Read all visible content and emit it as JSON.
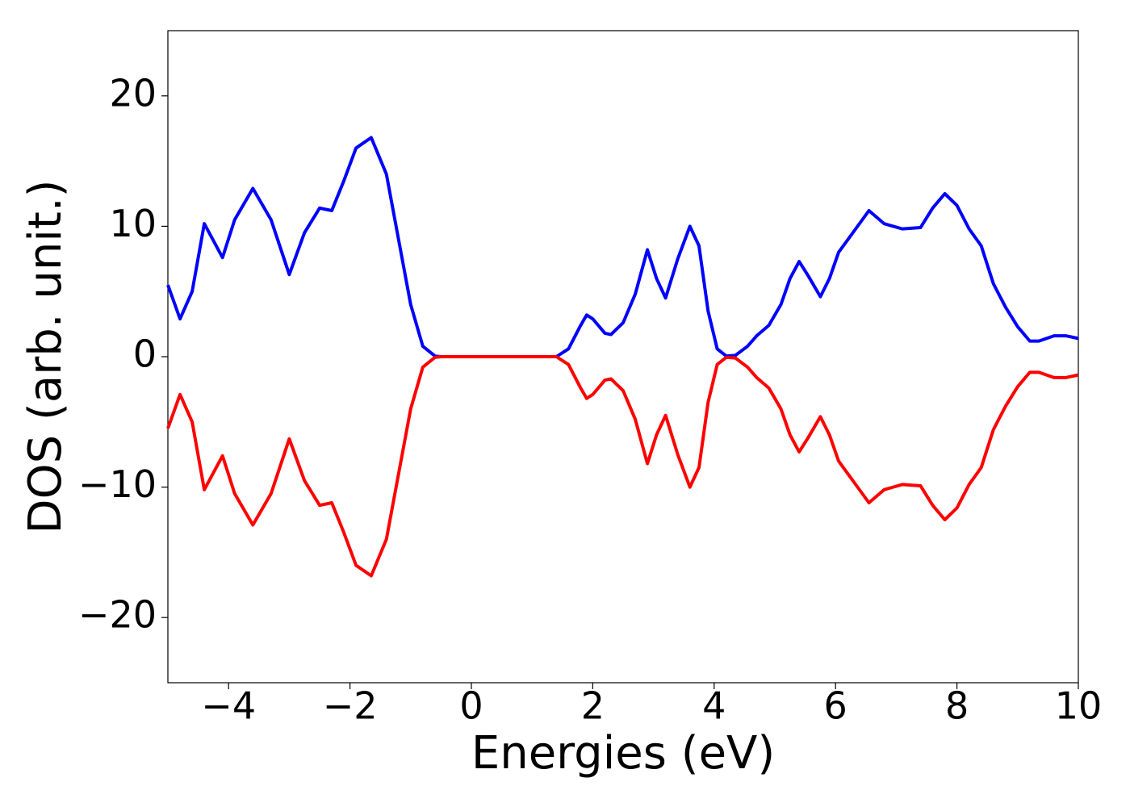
{
  "chart_data": {
    "type": "line",
    "xlabel": "Energies (eV)",
    "ylabel": "DOS (arb. unit.)",
    "x": [
      -5,
      -4.8,
      -4.6,
      -4.4,
      -4.1,
      -3.9,
      -3.6,
      -3.3,
      -3.0,
      -2.75,
      -2.5,
      -2.3,
      -2.1,
      -1.9,
      -1.65,
      -1.4,
      -1.2,
      -1.0,
      -0.8,
      -0.6,
      -0.5,
      0,
      0.5,
      1.0,
      1.4,
      1.6,
      1.8,
      1.9,
      2.0,
      2.2,
      2.3,
      2.5,
      2.7,
      2.9,
      3.05,
      3.2,
      3.4,
      3.6,
      3.75,
      3.9,
      4.05,
      4.2,
      4.35,
      4.55,
      4.7,
      4.9,
      5.1,
      5.25,
      5.4,
      5.55,
      5.75,
      5.9,
      6.05,
      6.3,
      6.55,
      6.8,
      7.1,
      7.4,
      7.6,
      7.8,
      8.0,
      8.2,
      8.4,
      8.6,
      8.8,
      9.0,
      9.2,
      9.35,
      9.6,
      9.8,
      10
    ],
    "series": [
      {
        "color": "#0000ff",
        "values": [
          5.5,
          2.9,
          5,
          10.2,
          7.6,
          10.5,
          12.9,
          10.5,
          6.3,
          9.5,
          11.4,
          11.2,
          13.5,
          16.0,
          16.8,
          14,
          9,
          4,
          0.8,
          0.05,
          0,
          0,
          0,
          0,
          0,
          0.6,
          2.4,
          3.2,
          2.9,
          1.8,
          1.7,
          2.6,
          4.8,
          8.2,
          6.0,
          4.5,
          7.5,
          10.0,
          8.5,
          3.5,
          0.6,
          0.05,
          0.1,
          0.8,
          1.6,
          2.4,
          4,
          6,
          7.3,
          6.2,
          4.6,
          6,
          8,
          9.6,
          11.2,
          10.2,
          9.8,
          9.9,
          11.4,
          12.5,
          11.6,
          9.8,
          8.5,
          5.6,
          3.8,
          2.3,
          1.2,
          1.2,
          1.6,
          1.6,
          1.4
        ]
      },
      {
        "color": "#ff0000",
        "values": [
          -5.5,
          -2.9,
          -5,
          -10.2,
          -7.6,
          -10.5,
          -12.9,
          -10.5,
          -6.3,
          -9.5,
          -11.4,
          -11.2,
          -13.5,
          -16.0,
          -16.8,
          -14,
          -9,
          -4,
          -0.8,
          -0.05,
          0,
          0,
          0,
          0,
          0,
          -0.6,
          -2.4,
          -3.2,
          -2.9,
          -1.8,
          -1.7,
          -2.6,
          -4.8,
          -8.2,
          -6.0,
          -4.5,
          -7.5,
          -10.0,
          -8.5,
          -3.5,
          -0.6,
          -0.05,
          -0.1,
          -0.8,
          -1.6,
          -2.4,
          -4,
          -6,
          -7.3,
          -6.2,
          -4.6,
          -6,
          -8,
          -9.6,
          -11.2,
          -10.2,
          -9.8,
          -9.9,
          -11.4,
          -12.5,
          -11.6,
          -9.8,
          -8.5,
          -5.6,
          -3.8,
          -2.3,
          -1.2,
          -1.2,
          -1.6,
          -1.6,
          -1.4
        ]
      }
    ],
    "xlim": [
      -5,
      10
    ],
    "xticks": [
      {
        "value": -4,
        "label": "−4"
      },
      {
        "value": -2,
        "label": "−2"
      },
      0,
      2,
      4,
      6,
      8,
      10
    ],
    "ylim": [
      -25,
      25
    ],
    "yticks": [
      {
        "value": -20,
        "label": "−20"
      },
      {
        "value": -10,
        "label": "−10"
      },
      0,
      10,
      20
    ]
  }
}
